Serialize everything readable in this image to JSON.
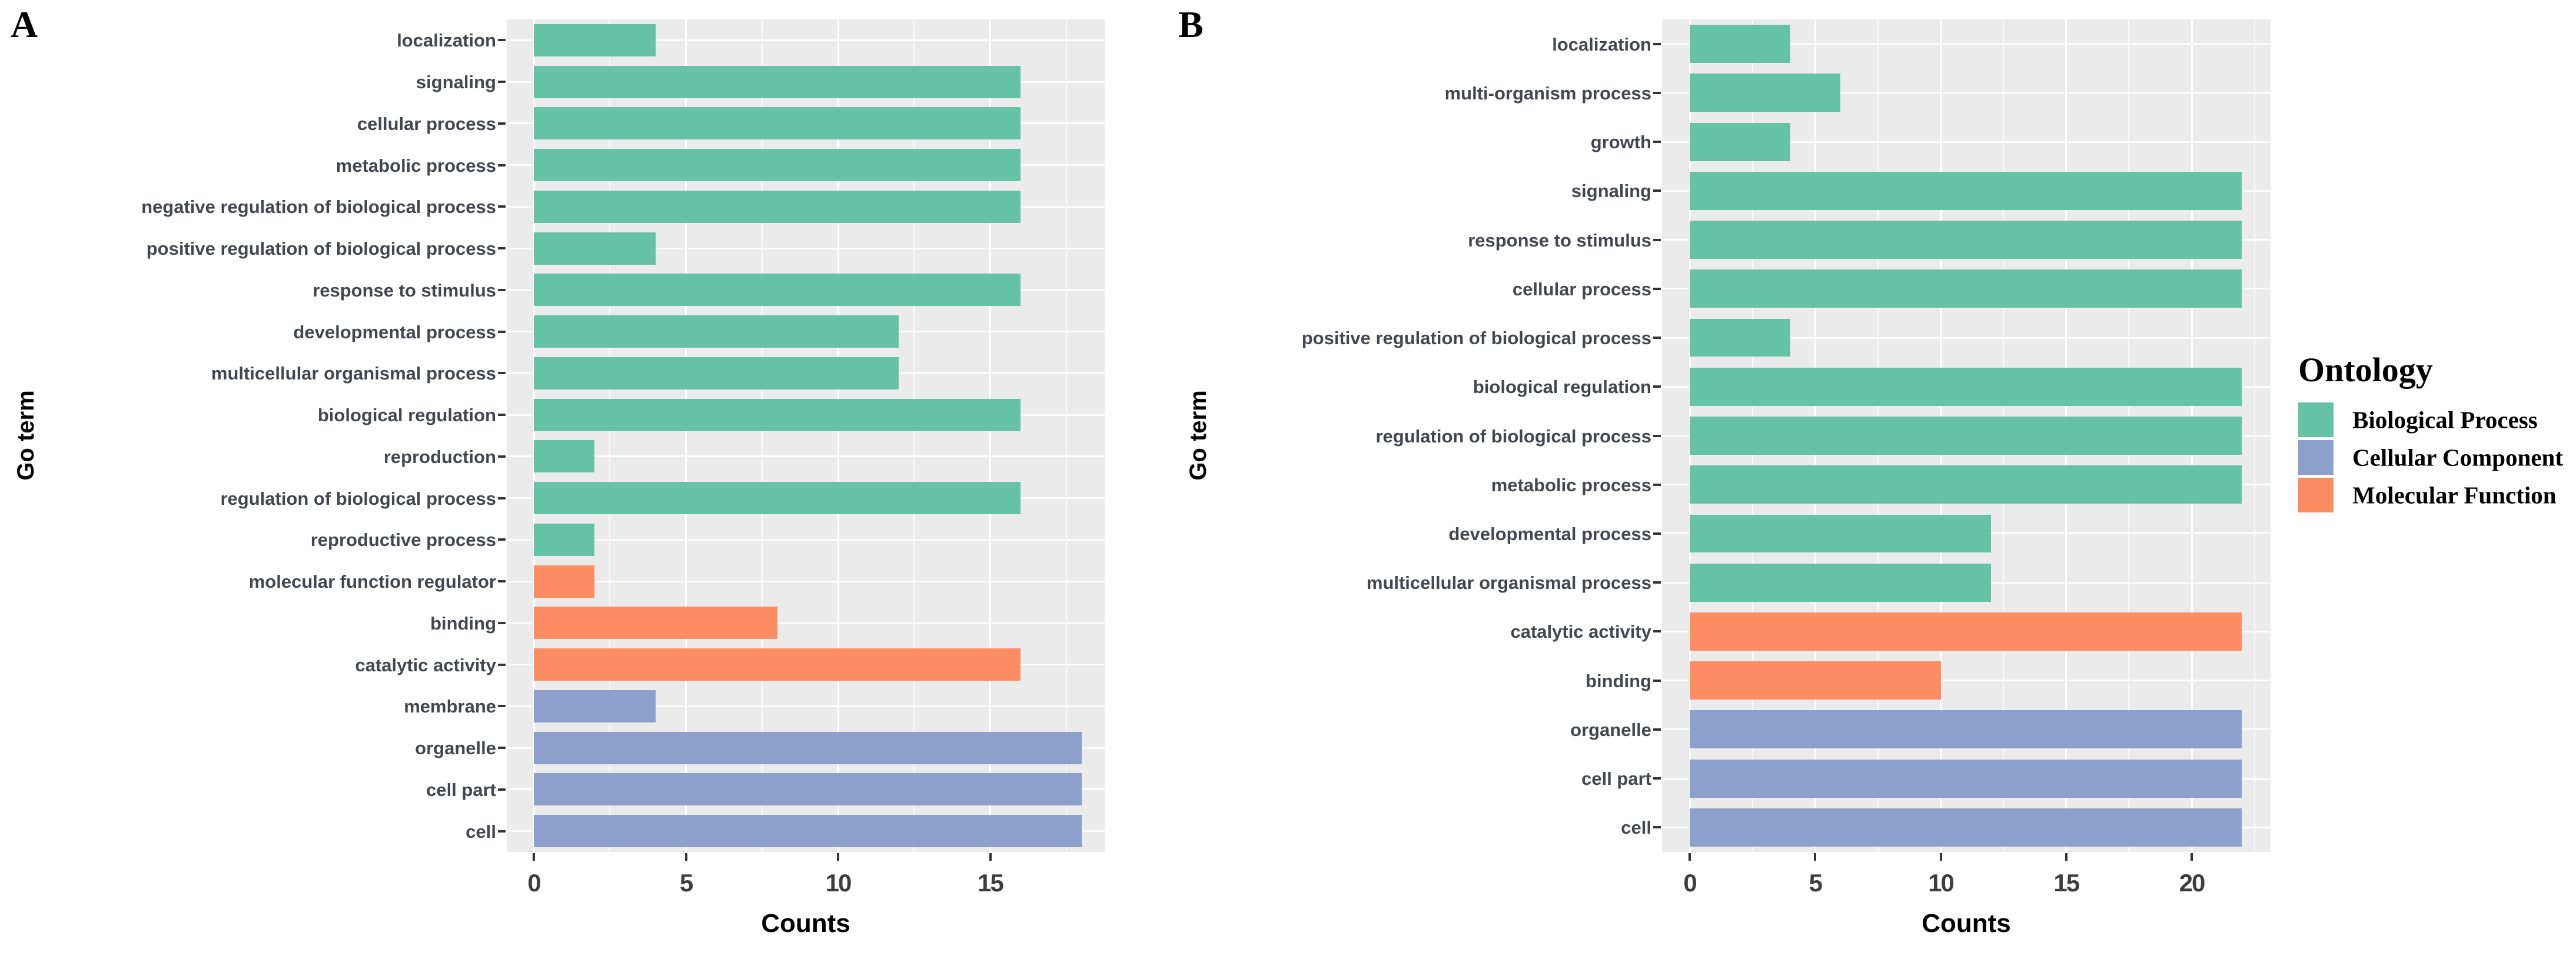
{
  "figure": {
    "panels": [
      {
        "letter": "A",
        "xlabel": "Counts",
        "ylabel": "Go term"
      },
      {
        "letter": "B",
        "xlabel": "Counts",
        "ylabel": "Go term"
      }
    ],
    "legend": {
      "title": "Ontology",
      "entries": [
        {
          "label": "Biological Process",
          "color": "#66C2A5"
        },
        {
          "label": "Cellular Component",
          "color": "#8DA0CB"
        },
        {
          "label": "Molecular Function",
          "color": "#FC8D62"
        }
      ]
    },
    "colors": {
      "panel_background": "#EBEBEB",
      "gridline": "#FFFFFF",
      "biological_process": "#66C2A5",
      "cellular_component": "#8DA0CB",
      "molecular_function": "#FC8D62"
    }
  },
  "chart_data": [
    {
      "type": "bar",
      "panel": "A",
      "orientation": "horizontal",
      "title": "",
      "xlabel": "Counts",
      "ylabel": "Go term",
      "xlim": [
        0,
        18.9
      ],
      "xticks": [
        0,
        5,
        10,
        15
      ],
      "grid": true,
      "legend_position": "right-shared",
      "categories": [
        "localization",
        "signaling",
        "cellular process",
        "metabolic process",
        "negative regulation of biological process",
        "positive regulation of biological process",
        "response to stimulus",
        "developmental process",
        "multicellular organismal process",
        "biological regulation",
        "reproduction",
        "regulation of biological process",
        "reproductive process",
        "molecular function regulator",
        "binding",
        "catalytic activity",
        "membrane",
        "organelle",
        "cell part",
        "cell"
      ],
      "values": [
        4,
        16,
        16,
        16,
        16,
        4,
        16,
        12,
        12,
        16,
        2,
        16,
        2,
        2,
        8,
        16,
        4,
        18,
        18,
        18
      ],
      "groups": [
        "Biological Process",
        "Biological Process",
        "Biological Process",
        "Biological Process",
        "Biological Process",
        "Biological Process",
        "Biological Process",
        "Biological Process",
        "Biological Process",
        "Biological Process",
        "Biological Process",
        "Biological Process",
        "Biological Process",
        "Molecular Function",
        "Molecular Function",
        "Molecular Function",
        "Cellular Component",
        "Cellular Component",
        "Cellular Component",
        "Cellular Component"
      ]
    },
    {
      "type": "bar",
      "panel": "B",
      "orientation": "horizontal",
      "title": "",
      "xlabel": "Counts",
      "ylabel": "Go term",
      "xlim": [
        0,
        23.1
      ],
      "xticks": [
        0,
        5,
        10,
        15,
        20
      ],
      "grid": true,
      "legend_position": "right-shared",
      "categories": [
        "localization",
        "multi-organism process",
        "growth",
        "signaling",
        "response to stimulus",
        "cellular process",
        "positive regulation of biological process",
        "biological regulation",
        "regulation of biological process",
        "metabolic process",
        "developmental process",
        "multicellular organismal process",
        "catalytic activity",
        "binding",
        "organelle",
        "cell part",
        "cell"
      ],
      "values": [
        4,
        6,
        4,
        22,
        22,
        22,
        4,
        22,
        22,
        22,
        12,
        12,
        22,
        10,
        22,
        22,
        22
      ],
      "groups": [
        "Biological Process",
        "Biological Process",
        "Biological Process",
        "Biological Process",
        "Biological Process",
        "Biological Process",
        "Biological Process",
        "Biological Process",
        "Biological Process",
        "Biological Process",
        "Biological Process",
        "Biological Process",
        "Molecular Function",
        "Molecular Function",
        "Cellular Component",
        "Cellular Component",
        "Cellular Component"
      ]
    }
  ]
}
